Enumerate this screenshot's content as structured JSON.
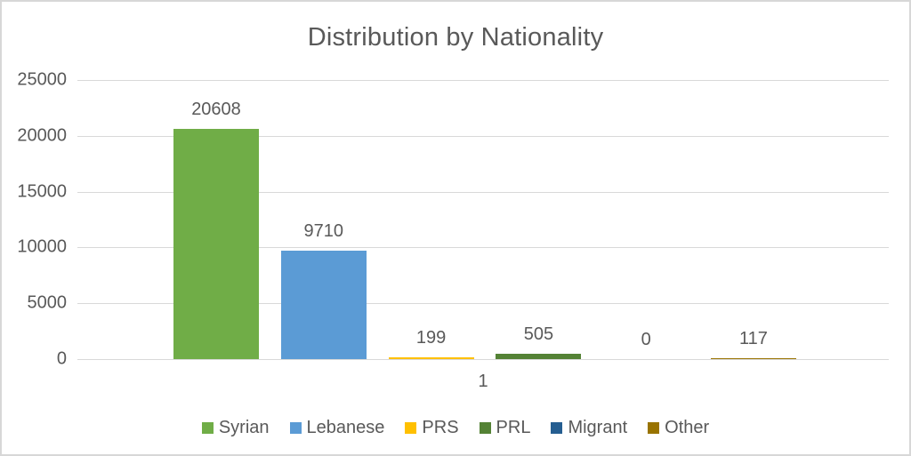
{
  "chart_data": {
    "type": "bar",
    "title": "Distribution by Nationality",
    "categories": [
      "1"
    ],
    "series": [
      {
        "name": "Syrian",
        "values": [
          20608
        ],
        "color": "#70AD47"
      },
      {
        "name": "Lebanese",
        "values": [
          9710
        ],
        "color": "#5B9BD5"
      },
      {
        "name": "PRS",
        "values": [
          199
        ],
        "color": "#FFC000"
      },
      {
        "name": "PRL",
        "values": [
          505
        ],
        "color": "#548235"
      },
      {
        "name": "Migrant",
        "values": [
          0
        ],
        "color": "#255E91"
      },
      {
        "name": "Other",
        "values": [
          117
        ],
        "color": "#997300"
      }
    ],
    "data_labels": [
      "20608",
      "9710",
      "199",
      "505",
      "0",
      "117"
    ],
    "xlabel": "",
    "ylabel": "",
    "ylim": [
      0,
      25000
    ],
    "yticks": [
      "0",
      "5000",
      "10000",
      "15000",
      "20000",
      "25000"
    ],
    "grid": true,
    "legend_position": "bottom"
  },
  "colors": {
    "text": "#595959",
    "gridline": "#D9D9D9",
    "frame_border": "#D7D7D7",
    "background": "#FFFFFF"
  }
}
